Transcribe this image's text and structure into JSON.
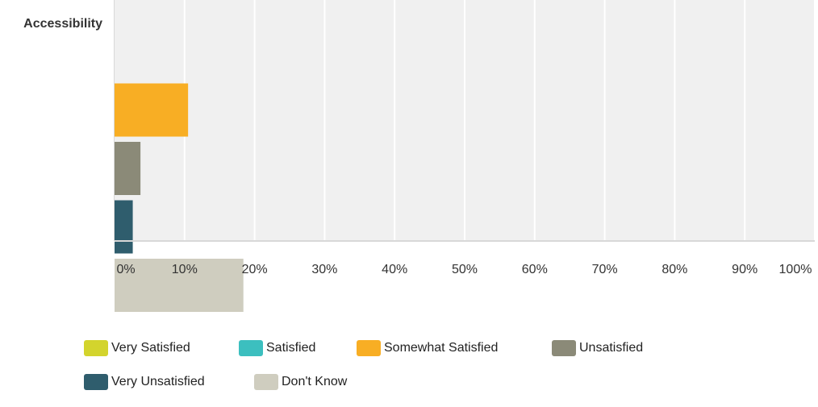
{
  "chart_data": {
    "type": "bar",
    "orientation": "horizontal",
    "categories": [
      "Accessibility"
    ],
    "series": [
      {
        "name": "Very Satisfied",
        "color": "#d3d42d",
        "values": [
          null
        ]
      },
      {
        "name": "Satisfied",
        "color": "#3cbfbf",
        "values": [
          null
        ]
      },
      {
        "name": "Somewhat Satisfied",
        "color": "#f8ae24",
        "values": [
          10.5
        ]
      },
      {
        "name": "Unsatisfied",
        "color": "#8b8a78",
        "values": [
          3.7
        ]
      },
      {
        "name": "Very Unsatisfied",
        "color": "#2f5d6d",
        "values": [
          2.6
        ]
      },
      {
        "name": "Don't Know",
        "color": "#cfcdbf",
        "values": [
          18.4
        ]
      }
    ],
    "xlim": [
      0,
      100
    ],
    "xticks": [
      "0%",
      "10%",
      "20%",
      "30%",
      "40%",
      "50%",
      "60%",
      "70%",
      "80%",
      "90%",
      "100%"
    ],
    "grid": true,
    "legend_position": "bottom",
    "plot_background": "#f0f0f0",
    "grid_color": "#ffffff"
  }
}
